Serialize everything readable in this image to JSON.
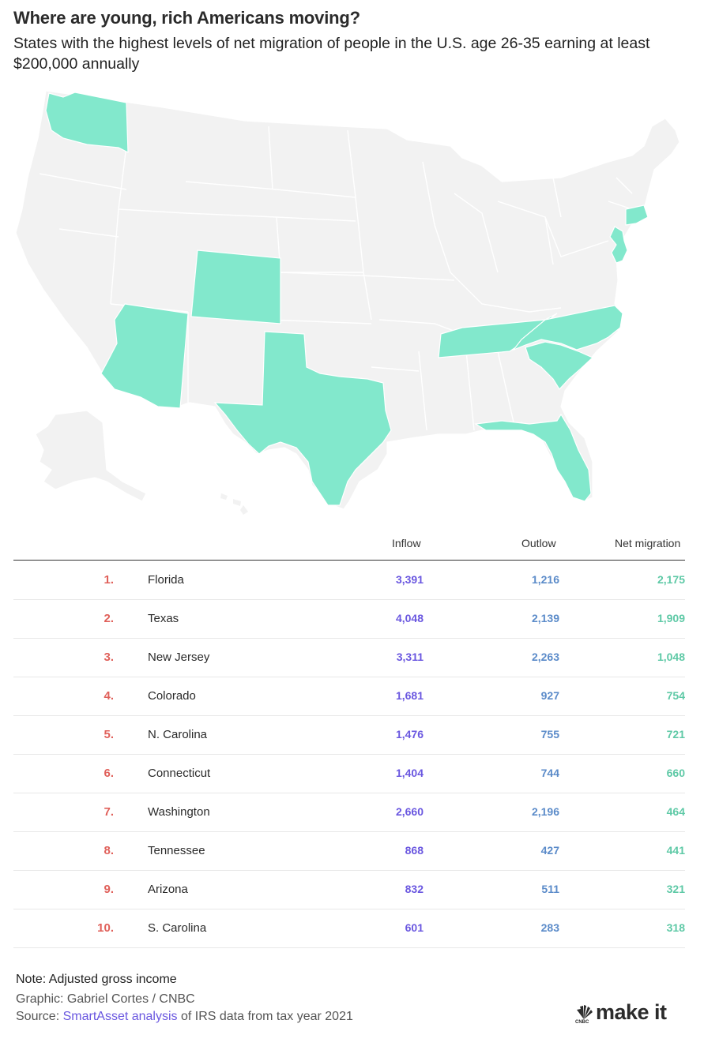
{
  "title": "Where are young, rich Americans moving?",
  "subtitle": "States with the highest levels of net migration of people in the U.S. age 26-35 earning at least $200,000 annually",
  "colors": {
    "highlight": "#82e8cc",
    "base": "#f2f2f2",
    "border": "#ffffff",
    "rank": "#e0605a",
    "inflow": "#6a57e0",
    "outflow": "#5b8bc9",
    "net": "#5ec9a6"
  },
  "map": {
    "highlighted_states": [
      "Florida",
      "Texas",
      "New Jersey",
      "Colorado",
      "N. Carolina",
      "Connecticut",
      "Washington",
      "Tennessee",
      "Arizona",
      "S. Carolina"
    ]
  },
  "table": {
    "headers": {
      "inflow": "Inflow",
      "outflow": "Outlow",
      "net": "Net migration"
    },
    "rows": [
      {
        "rank": "1.",
        "state": "Florida",
        "inflow": "3,391",
        "outflow": "1,216",
        "net": "2,175"
      },
      {
        "rank": "2.",
        "state": "Texas",
        "inflow": "4,048",
        "outflow": "2,139",
        "net": "1,909"
      },
      {
        "rank": "3.",
        "state": "New Jersey",
        "inflow": "3,311",
        "outflow": "2,263",
        "net": "1,048"
      },
      {
        "rank": "4.",
        "state": "Colorado",
        "inflow": "1,681",
        "outflow": "927",
        "net": "754"
      },
      {
        "rank": "5.",
        "state": "N. Carolina",
        "inflow": "1,476",
        "outflow": "755",
        "net": "721"
      },
      {
        "rank": "6.",
        "state": "Connecticut",
        "inflow": "1,404",
        "outflow": "744",
        "net": "660"
      },
      {
        "rank": "7.",
        "state": "Washington",
        "inflow": "2,660",
        "outflow": "2,196",
        "net": "464"
      },
      {
        "rank": "8.",
        "state": "Tennessee",
        "inflow": "868",
        "outflow": "427",
        "net": "441"
      },
      {
        "rank": "9.",
        "state": "Arizona",
        "inflow": "832",
        "outflow": "511",
        "net": "321"
      },
      {
        "rank": "10.",
        "state": "S. Carolina",
        "inflow": "601",
        "outflow": "283",
        "net": "318"
      }
    ]
  },
  "footer": {
    "note": "Note: Adjusted gross income",
    "graphic": "Graphic: Gabriel Cortes / CNBC",
    "source_prefix": "Source: ",
    "source_link": "SmartAsset analysis",
    "source_suffix": " of IRS data from tax year 2021"
  },
  "logo": {
    "text": "make it",
    "sub": "CNBC",
    "icon": "peacock-icon"
  }
}
